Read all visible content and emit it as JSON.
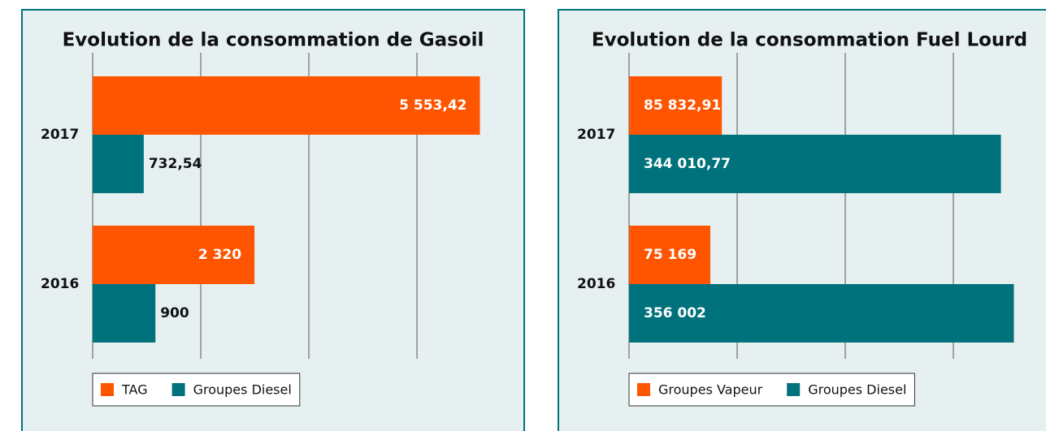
{
  "chart_data": [
    {
      "type": "bar",
      "orientation": "horizontal",
      "title": "Evolution de la consommation de Gasoil",
      "categories": [
        "2017",
        "2016"
      ],
      "series": [
        {
          "name": "TAG",
          "color": "#ff5500",
          "values": [
            5553.42,
            2320
          ],
          "value_labels": [
            "5 553,42",
            "2 320"
          ]
        },
        {
          "name": "Groupes Diesel",
          "color": "#00727c",
          "values": [
            732.54,
            900
          ],
          "value_labels": [
            "732,54",
            "900"
          ]
        }
      ],
      "xlim": [
        0,
        6200
      ],
      "xticks": [
        0,
        1550,
        3100,
        4650
      ],
      "grid": true
    },
    {
      "type": "bar",
      "orientation": "horizontal",
      "title": "Evolution de la consommation Fuel Lourd",
      "categories": [
        "2017",
        "2016"
      ],
      "series": [
        {
          "name": "Groupes Vapeur",
          "color": "#ff5500",
          "values": [
            85832.91,
            75169
          ],
          "value_labels": [
            "85 832,91",
            "75 169"
          ]
        },
        {
          "name": "Groupes Diesel",
          "color": "#00727c",
          "values": [
            344010.77,
            356002
          ],
          "value_labels": [
            "344 010,77",
            "356 002"
          ]
        }
      ],
      "xlim": [
        0,
        400000
      ],
      "xticks": [
        0,
        100000,
        200000,
        300000
      ],
      "grid": true
    }
  ]
}
